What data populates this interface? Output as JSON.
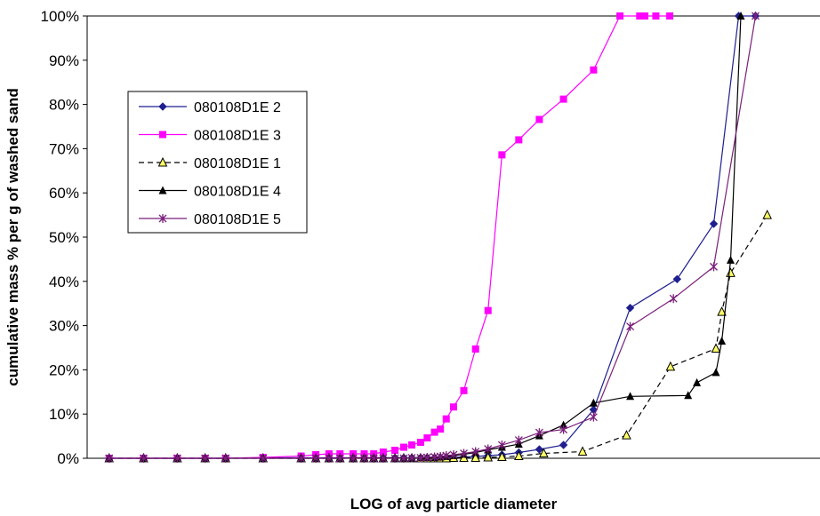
{
  "chart_data": {
    "type": "line",
    "title": "",
    "xlabel": "LOG of avg particle diameter",
    "ylabel": "cumulative mass % per g of washed sand",
    "ylim": [
      0,
      100
    ],
    "xlim": [
      0,
      100
    ],
    "yticks": [
      0,
      10,
      20,
      30,
      40,
      50,
      60,
      70,
      80,
      90,
      100
    ],
    "ytick_labels": [
      "0%",
      "10%",
      "20%",
      "30%",
      "40%",
      "50%",
      "60%",
      "70%",
      "80%",
      "90%",
      "100%"
    ],
    "grid": false,
    "legend_position": "left",
    "series": [
      {
        "name": "080108D1E 2",
        "color": "#1f1f8f",
        "marker": "diamond",
        "dash": false,
        "x": [
          3,
          7.7,
          12.3,
          16.1,
          18.9,
          24,
          29.2,
          31.2,
          33,
          34.5,
          36.3,
          37.8,
          39.1,
          40.4,
          42,
          43.2,
          44.3,
          45.5,
          46.4,
          47.4,
          48.2,
          49,
          50,
          51.4,
          53,
          54.7,
          56.6,
          58.9,
          61.7,
          65,
          69.1,
          74.1,
          80.5,
          85.5,
          88.9,
          91.2
        ],
        "y": [
          0,
          0,
          0,
          0,
          0,
          0.1,
          0.1,
          0.1,
          0.1,
          0.1,
          0.1,
          0.1,
          0.1,
          0.1,
          0.1,
          0.1,
          0.1,
          0.1,
          0.1,
          0.1,
          0.1,
          0.2,
          0.2,
          0.3,
          0.4,
          0.6,
          0.8,
          1.3,
          2,
          3,
          11,
          34,
          40.5,
          53,
          100,
          100
        ]
      },
      {
        "name": "080108D1E 3",
        "color": "#ff00ff",
        "marker": "square",
        "dash": false,
        "x": [
          3,
          7.7,
          12.3,
          16.1,
          18.9,
          24,
          29.2,
          31.2,
          33,
          34.5,
          36.3,
          37.8,
          39.1,
          40.4,
          42,
          43.2,
          44.3,
          45.5,
          46.4,
          47.4,
          48.2,
          49,
          50,
          51.4,
          53,
          54.7,
          56.6,
          58.9,
          61.7,
          65,
          69.1,
          72.7,
          75.4,
          76.1,
          77.6,
          79.5
        ],
        "y": [
          0,
          0,
          0,
          0,
          0,
          0.2,
          0.5,
          0.8,
          1,
          1,
          1,
          1,
          1,
          1.4,
          1.8,
          2.5,
          3,
          3.6,
          4.6,
          5.9,
          6.6,
          8.9,
          11.6,
          15.3,
          24.7,
          33.4,
          68.6,
          72,
          76.6,
          81.2,
          87.8,
          100,
          100,
          100,
          100,
          100
        ]
      },
      {
        "name": "080108D1E 1",
        "color": "#000000",
        "marker": "triangle-open",
        "dash": true,
        "x": [
          3,
          7.7,
          12.3,
          16.1,
          18.9,
          24,
          29.2,
          31.2,
          33,
          34.5,
          36.3,
          37.8,
          39.1,
          40.4,
          42,
          43.2,
          44.3,
          45.5,
          46.4,
          47.4,
          48.2,
          49,
          50,
          51.4,
          53,
          54.7,
          56.6,
          58.9,
          62.3,
          67.6,
          73.6,
          79.6,
          85.8,
          86.6,
          87.8,
          92.8
        ],
        "y": [
          0,
          0,
          0,
          0,
          0,
          0,
          0,
          0,
          0,
          0,
          0,
          0,
          0,
          0,
          0,
          0,
          0,
          0,
          0,
          0,
          0,
          0,
          0.1,
          0.1,
          0.1,
          0.2,
          0.3,
          0.5,
          1.1,
          1.5,
          5.2,
          20.7,
          24.8,
          33.1,
          41.9,
          55
        ]
      },
      {
        "name": "080108D1E 4",
        "color": "#000000",
        "marker": "triangle",
        "dash": false,
        "x": [
          3,
          7.7,
          12.3,
          16.1,
          18.9,
          24,
          29.2,
          31.2,
          33,
          34.5,
          36.3,
          37.8,
          39.1,
          40.4,
          42,
          43.2,
          44.3,
          45.5,
          46.4,
          47.4,
          48.2,
          49,
          50,
          51.4,
          53,
          54.7,
          56.6,
          58.9,
          61.7,
          65,
          69.1,
          74.1,
          82,
          83.2,
          85.8,
          86.6,
          87.8,
          89.2
        ],
        "y": [
          0,
          0,
          0,
          0,
          0,
          0,
          0,
          0,
          0,
          0,
          0.1,
          0.1,
          0.1,
          0.1,
          0.1,
          0.1,
          0.1,
          0.2,
          0.2,
          0.2,
          0.3,
          0.4,
          0.6,
          0.9,
          1.3,
          1.9,
          2.5,
          3.2,
          5.1,
          7.5,
          12.5,
          14,
          14.2,
          17.1,
          19.4,
          26.5,
          44.8,
          100
        ]
      },
      {
        "name": "080108D1E 5",
        "color": "#7b1f7b",
        "marker": "star",
        "dash": false,
        "x": [
          3,
          7.7,
          12.3,
          16.1,
          18.9,
          24,
          29.2,
          31.2,
          33,
          34.5,
          36.3,
          37.8,
          39.1,
          40.4,
          42,
          43.2,
          44.3,
          45.5,
          46.4,
          47.4,
          48.2,
          49,
          50,
          51.4,
          53,
          54.7,
          56.6,
          58.9,
          61.7,
          65,
          69.1,
          74.1,
          80,
          85.5,
          91.2
        ],
        "y": [
          0,
          0,
          0,
          0,
          0,
          0,
          0,
          0,
          0,
          0,
          0,
          0,
          0,
          0,
          0,
          0,
          0.1,
          0.1,
          0.2,
          0.3,
          0.4,
          0.6,
          0.8,
          1.1,
          1.5,
          2.1,
          3,
          4.1,
          5.8,
          6.5,
          9.3,
          29.8,
          36.1,
          43.3,
          100
        ]
      }
    ]
  }
}
